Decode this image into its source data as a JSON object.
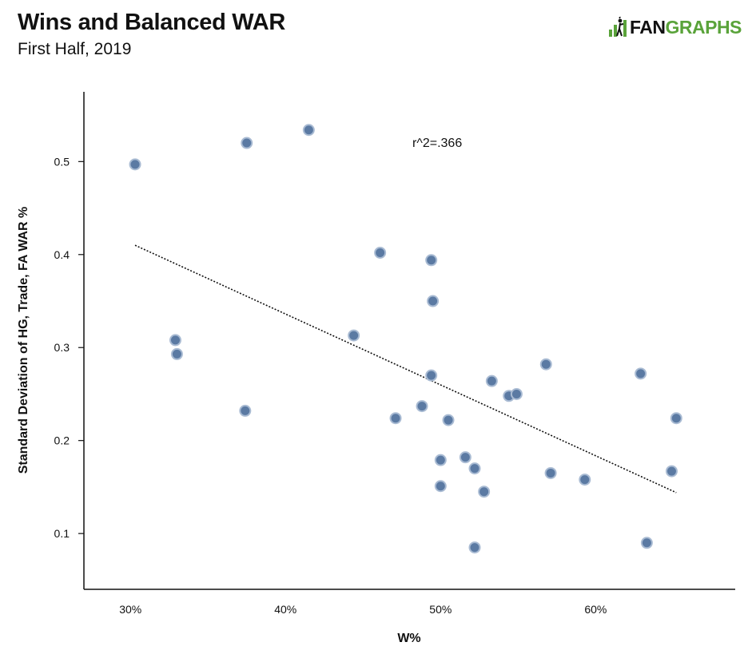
{
  "header": {
    "title": "Wins and Balanced WAR",
    "subtitle": "First Half, 2019",
    "logo_fan": "FAN",
    "logo_graphs": "GRAPHS"
  },
  "colors": {
    "point_fill": "#5b7aa3",
    "point_stroke": "#a9bbd3",
    "trendline": "#111111",
    "logo_green": "#5aa33a"
  },
  "chart_data": {
    "type": "scatter",
    "title": "Wins and Balanced WAR",
    "subtitle": "First Half, 2019",
    "xlabel": "W%",
    "ylabel": "Standard Deviation of HG, Trade, FA WAR %",
    "xlim": [
      0.27,
      0.69
    ],
    "ylim": [
      0.04,
      0.575
    ],
    "x_ticks": [
      0.3,
      0.4,
      0.5,
      0.6
    ],
    "x_tick_labels": [
      "30%",
      "40%",
      "50%",
      "60%"
    ],
    "y_ticks": [
      0.1,
      0.2,
      0.3,
      0.4,
      0.5
    ],
    "y_tick_labels": [
      "0.1",
      "0.2",
      "0.3",
      "0.4",
      "0.5"
    ],
    "annotation": "r^2=.366",
    "grid": false,
    "points": [
      {
        "x": 0.303,
        "y": 0.497
      },
      {
        "x": 0.329,
        "y": 0.308
      },
      {
        "x": 0.33,
        "y": 0.293
      },
      {
        "x": 0.374,
        "y": 0.232
      },
      {
        "x": 0.375,
        "y": 0.52
      },
      {
        "x": 0.415,
        "y": 0.534
      },
      {
        "x": 0.444,
        "y": 0.313
      },
      {
        "x": 0.461,
        "y": 0.402
      },
      {
        "x": 0.471,
        "y": 0.224
      },
      {
        "x": 0.488,
        "y": 0.237
      },
      {
        "x": 0.494,
        "y": 0.394
      },
      {
        "x": 0.494,
        "y": 0.27
      },
      {
        "x": 0.495,
        "y": 0.35
      },
      {
        "x": 0.5,
        "y": 0.179
      },
      {
        "x": 0.5,
        "y": 0.151
      },
      {
        "x": 0.505,
        "y": 0.222
      },
      {
        "x": 0.516,
        "y": 0.182
      },
      {
        "x": 0.522,
        "y": 0.17
      },
      {
        "x": 0.522,
        "y": 0.085
      },
      {
        "x": 0.528,
        "y": 0.145
      },
      {
        "x": 0.533,
        "y": 0.264
      },
      {
        "x": 0.544,
        "y": 0.248
      },
      {
        "x": 0.549,
        "y": 0.25
      },
      {
        "x": 0.568,
        "y": 0.282
      },
      {
        "x": 0.571,
        "y": 0.165
      },
      {
        "x": 0.593,
        "y": 0.158
      },
      {
        "x": 0.629,
        "y": 0.272
      },
      {
        "x": 0.633,
        "y": 0.09
      },
      {
        "x": 0.649,
        "y": 0.167
      },
      {
        "x": 0.652,
        "y": 0.224
      }
    ],
    "trendline": {
      "x": [
        0.303,
        0.652
      ],
      "y": [
        0.41,
        0.144
      ]
    }
  }
}
